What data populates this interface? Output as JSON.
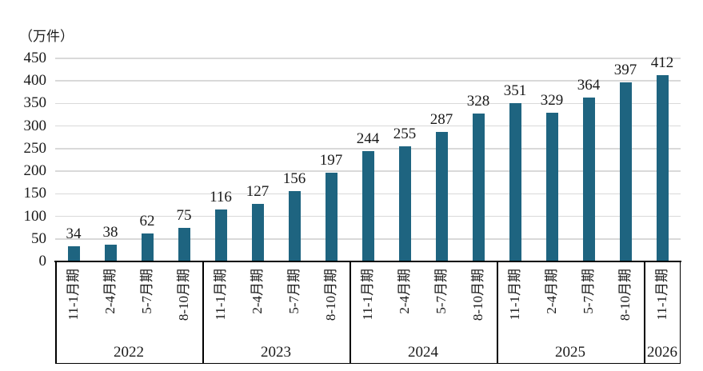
{
  "chart_data": {
    "type": "bar",
    "title": "",
    "unit_label": "（万件）",
    "ylabel": "（万件）",
    "xlabel": "",
    "ylim": [
      0,
      450
    ],
    "ytick_step": 50,
    "yticks": [
      0,
      50,
      100,
      150,
      200,
      250,
      300,
      350,
      400,
      450
    ],
    "grid": true,
    "legend": "none",
    "bar_color": "#1e6480",
    "groups": [
      {
        "year": "2022",
        "categories": [
          "11-1月期",
          "2-4月期",
          "5-7月期",
          "8-10月期"
        ],
        "values": [
          34,
          38,
          62,
          75
        ]
      },
      {
        "year": "2023",
        "categories": [
          "11-1月期",
          "2-4月期",
          "5-7月期",
          "8-10月期"
        ],
        "values": [
          116,
          127,
          156,
          197
        ]
      },
      {
        "year": "2024",
        "categories": [
          "11-1月期",
          "2-4月期",
          "5-7月期",
          "8-10月期"
        ],
        "values": [
          244,
          255,
          287,
          328
        ]
      },
      {
        "year": "2025",
        "categories": [
          "11-1月期",
          "2-4月期",
          "5-7月期",
          "8-10月期"
        ],
        "values": [
          351,
          329,
          364,
          397
        ]
      },
      {
        "year": "2026",
        "categories": [
          "11-1月期"
        ],
        "values": [
          412
        ]
      }
    ]
  },
  "colors": {
    "bar": "#1e6480",
    "gridline": "#d9d9d9",
    "axis": "#000000",
    "text": "#1a1a1a",
    "background": "#ffffff"
  }
}
